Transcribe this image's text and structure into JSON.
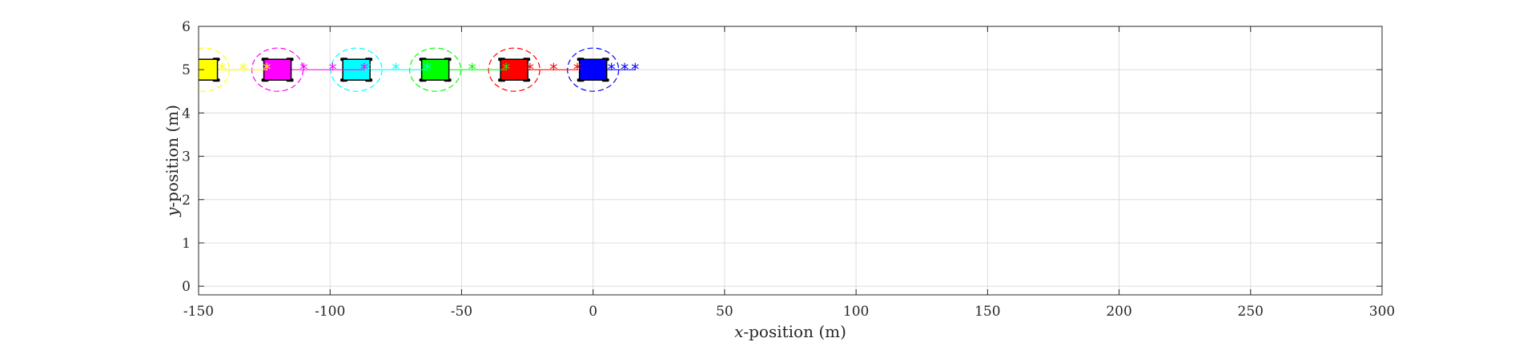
{
  "chart_data": {
    "type": "scatter",
    "title": "",
    "xlabel": {
      "var": "x",
      "rest": "-position (m)"
    },
    "ylabel": {
      "var": "y",
      "rest": "-position (m)"
    },
    "xlim": [
      -150,
      300
    ],
    "ylim": [
      -0.2,
      6
    ],
    "xticks": [
      -150,
      -100,
      -50,
      0,
      50,
      100,
      150,
      200,
      250,
      300
    ],
    "yticks": [
      0,
      1,
      2,
      3,
      4,
      5,
      6
    ],
    "grid": true,
    "vehicles": [
      {
        "color": "#0000ff",
        "x": 0,
        "y": 5,
        "trajectory_x": [
          0,
          3,
          7,
          12,
          16
        ]
      },
      {
        "color": "#ff0000",
        "x": -30,
        "y": 5,
        "trajectory_x": [
          -33,
          -24,
          -15,
          -6
        ]
      },
      {
        "color": "#00ff00",
        "x": -60,
        "y": 5,
        "trajectory_x": [
          -57,
          -46,
          -33
        ]
      },
      {
        "color": "#00ffff",
        "x": -90,
        "y": 5,
        "trajectory_x": [
          -86,
          -75,
          -63
        ]
      },
      {
        "color": "#ff00ff",
        "x": -120,
        "y": 5,
        "trajectory_x": [
          -110,
          -99,
          -87
        ]
      },
      {
        "color": "#ffff00",
        "x": -148,
        "y": 5,
        "trajectory_x": [
          -141,
          -133,
          -124
        ]
      }
    ]
  }
}
